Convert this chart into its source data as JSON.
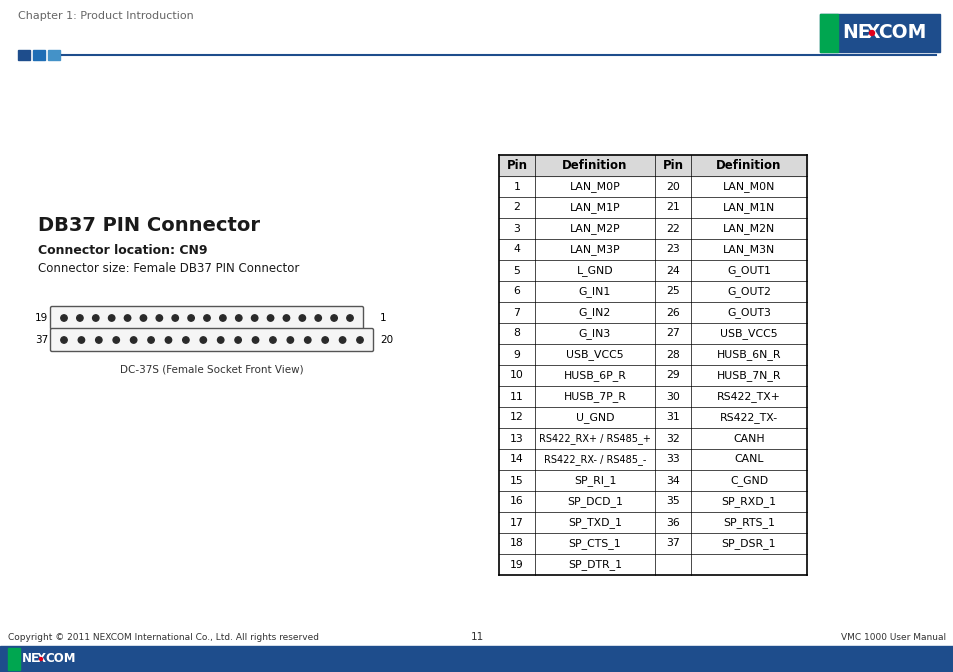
{
  "title": "DB37 PIN Connector",
  "connector_location_label": "Connector location: CN9",
  "connector_size_label": "Connector size: Female DB37 PIN Connector",
  "connector_diagram_label": "DC-37S (Female Socket Front View)",
  "chapter_header": "Chapter 1: Product Introduction",
  "page_number": "11",
  "footer_left": "Copyright © 2011 NEXCOM International Co., Ltd. All rights reserved",
  "footer_right": "VMC 1000 User Manual",
  "table_headers": [
    "Pin",
    "Definition",
    "Pin",
    "Definition"
  ],
  "table_data": [
    [
      "1",
      "LAN_M0P",
      "20",
      "LAN_M0N"
    ],
    [
      "2",
      "LAN_M1P",
      "21",
      "LAN_M1N"
    ],
    [
      "3",
      "LAN_M2P",
      "22",
      "LAN_M2N"
    ],
    [
      "4",
      "LAN_M3P",
      "23",
      "LAN_M3N"
    ],
    [
      "5",
      "L_GND",
      "24",
      "G_OUT1"
    ],
    [
      "6",
      "G_IN1",
      "25",
      "G_OUT2"
    ],
    [
      "7",
      "G_IN2",
      "26",
      "G_OUT3"
    ],
    [
      "8",
      "G_IN3",
      "27",
      "USB_VCC5"
    ],
    [
      "9",
      "USB_VCC5",
      "28",
      "HUSB_6N_R"
    ],
    [
      "10",
      "HUSB_6P_R",
      "29",
      "HUSB_7N_R"
    ],
    [
      "11",
      "HUSB_7P_R",
      "30",
      "RS422_TX+"
    ],
    [
      "12",
      "U_GND",
      "31",
      "RS422_TX-"
    ],
    [
      "13",
      "RS422_RX+ / RS485_+",
      "32",
      "CANH"
    ],
    [
      "14",
      "RS422_RX- / RS485_-",
      "33",
      "CANL"
    ],
    [
      "15",
      "SP_RI_1",
      "34",
      "C_GND"
    ],
    [
      "16",
      "SP_DCD_1",
      "35",
      "SP_RXD_1"
    ],
    [
      "17",
      "SP_TXD_1",
      "36",
      "SP_RTS_1"
    ],
    [
      "18",
      "SP_CTS_1",
      "37",
      "SP_DSR_1"
    ],
    [
      "19",
      "SP_DTR_1",
      "",
      ""
    ]
  ],
  "bg_color": "#ffffff",
  "table_border_color": "#000000",
  "text_color": "#000000",
  "header_text_color": "#666666",
  "nexcom_red": "#e2001a",
  "nexcom_green": "#00a650",
  "nexcom_blue": "#1e4d8c",
  "blue_bar_color": "#1e4d8c",
  "sq_colors": [
    "#1e4d8c",
    "#1e6db5",
    "#4492c8"
  ],
  "footer_bar_color": "#1e4d8c",
  "top_rule_color": "#1e4d8c"
}
